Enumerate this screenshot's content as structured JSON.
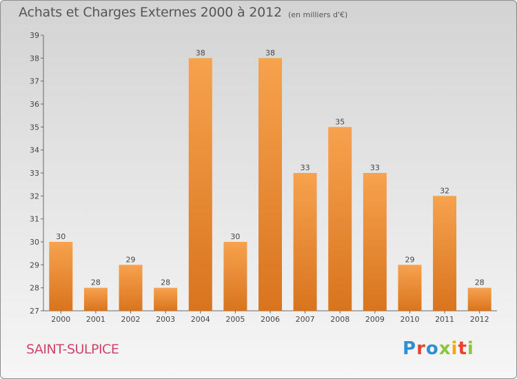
{
  "header": {
    "title": "Achats et Charges Externes 2000 à 2012",
    "unit": "(en milliers d'€)"
  },
  "footer": {
    "commune": "SAINT-SULPICE",
    "logo": "Proxiti",
    "logo_colors": [
      "#2f8fd6",
      "#e8432e",
      "#2f8fd6",
      "#8cc63f",
      "#f2a900",
      "#e8432e",
      "#8cc63f"
    ]
  },
  "colors": {
    "bar_light": "#f7a24e",
    "bar_dark": "#d9741e",
    "commune": "#d0436b"
  },
  "chart_data": {
    "type": "bar",
    "title": "Achats et Charges Externes 2000 à 2012",
    "subtitle": "(en milliers d'€)",
    "categories": [
      "2000",
      "2001",
      "2002",
      "2003",
      "2004",
      "2005",
      "2006",
      "2007",
      "2008",
      "2009",
      "2010",
      "2011",
      "2012"
    ],
    "values": [
      30,
      28,
      29,
      28,
      38,
      30,
      38,
      33,
      35,
      33,
      29,
      32,
      28
    ],
    "ylim": [
      27,
      39
    ],
    "yticks": [
      27,
      28,
      29,
      30,
      31,
      32,
      33,
      34,
      35,
      36,
      37,
      38,
      39
    ],
    "grid": false,
    "legend": "none"
  }
}
